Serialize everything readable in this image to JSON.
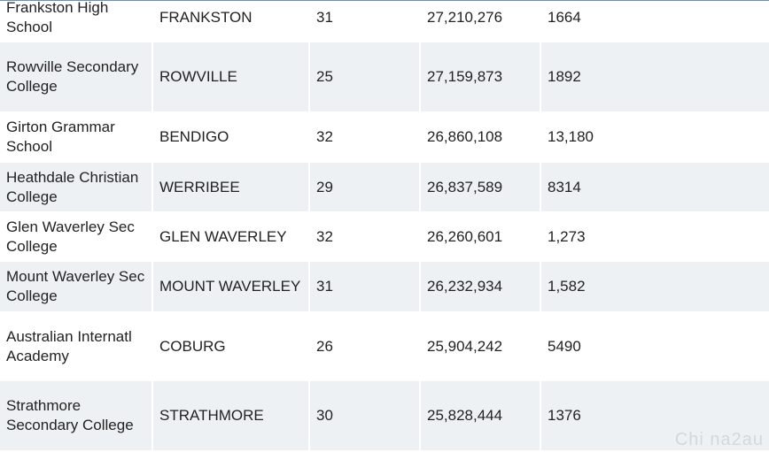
{
  "table": {
    "rows": [
      [
        "Frankston High School",
        "FRANKSTON",
        "31",
        "27,210,276",
        "1664"
      ],
      [
        "Rowville Secondary College",
        "ROWVILLE",
        "25",
        "27,159,873",
        "1892"
      ],
      [
        "Girton Grammar School",
        "BENDIGO",
        "32",
        "26,860,108",
        "13,180"
      ],
      [
        "Heathdale Christian College",
        "WERRIBEE",
        "29",
        "26,837,589",
        "8314"
      ],
      [
        "Glen Waverley Sec College",
        "GLEN WAVERLEY",
        "32",
        "26,260,601",
        "1,273"
      ],
      [
        "Mount Waverley Sec College",
        "MOUNT WAVERLEY",
        "31",
        "26,232,934",
        "1,582"
      ],
      [
        "Australian Internatl Academy",
        "COBURG",
        "26",
        "25,904,242",
        "5490"
      ],
      [
        "Strathmore Secondary College",
        "STRATHMORE",
        "30",
        "25,828,444",
        "1376"
      ]
    ]
  },
  "watermark": "Chi na2au"
}
